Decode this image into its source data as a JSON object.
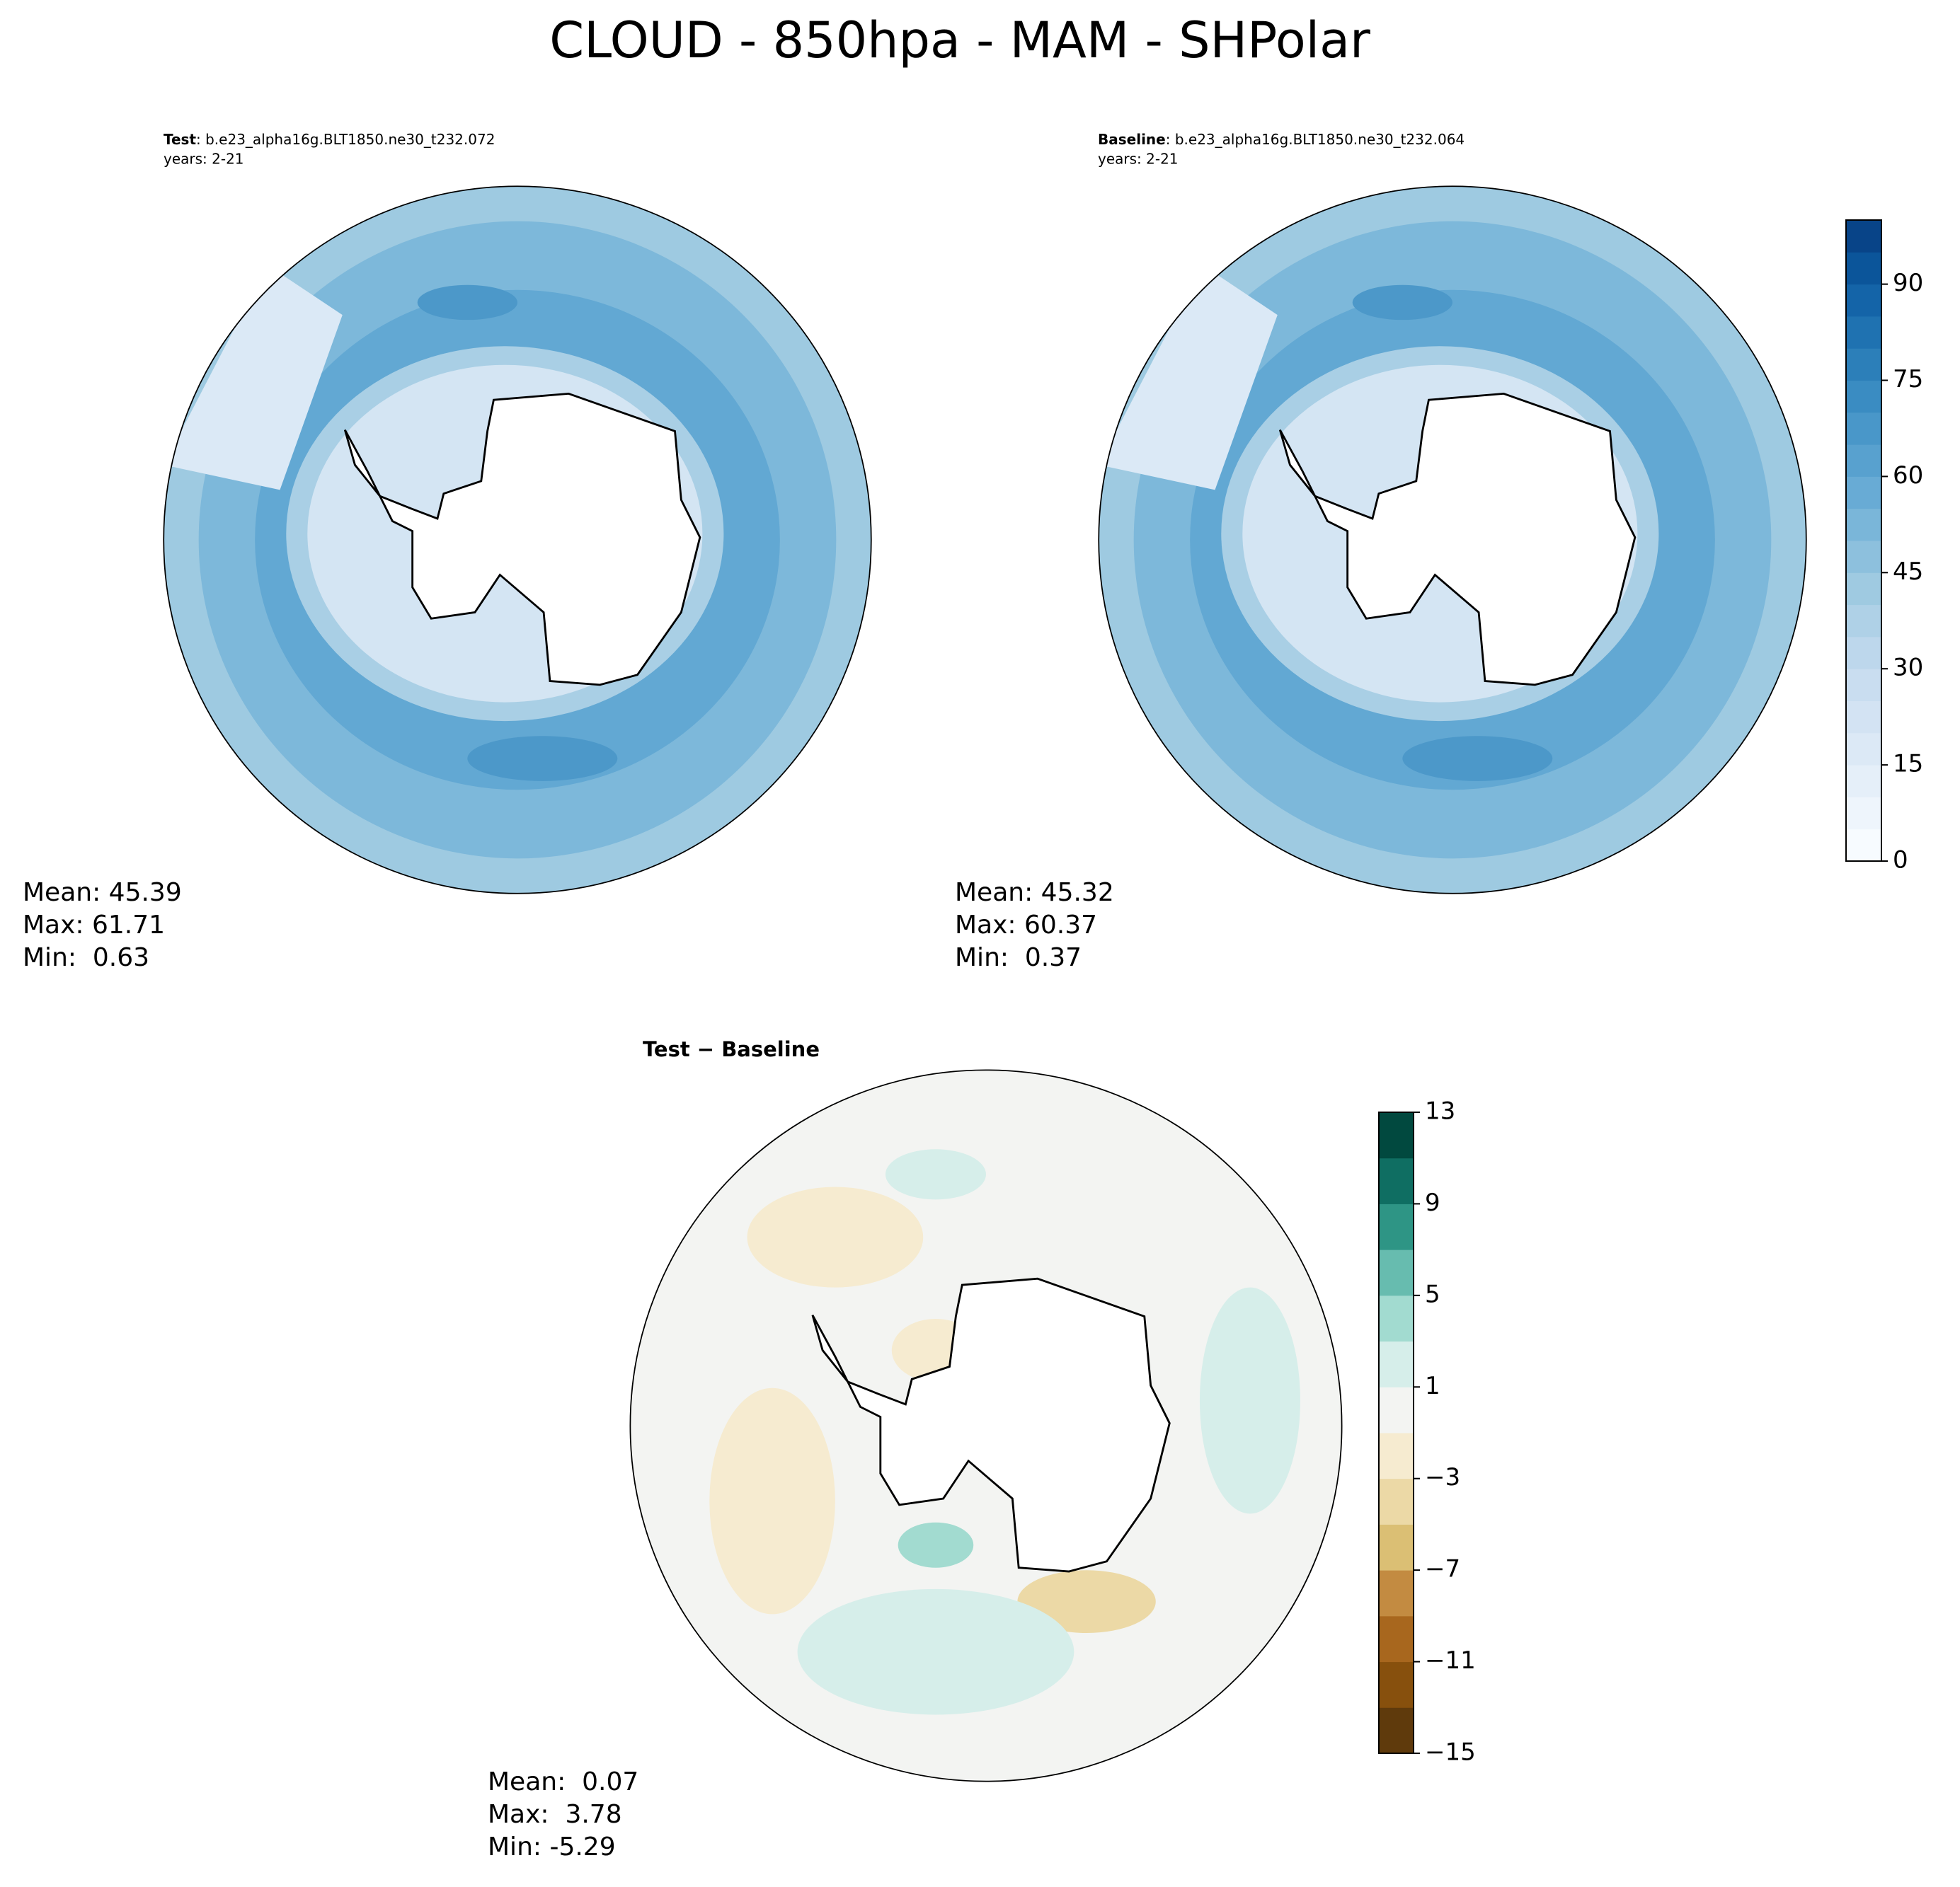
{
  "title": "CLOUD - 850hpa - MAM - SHPolar",
  "panels": [
    {
      "label": "Test",
      "case": ": b.e23_alpha16g.BLT1850.ne30_t232.072",
      "years": "years: 2-21",
      "stats": [
        "Mean: 45.39",
        "Max: 61.71",
        "Min:  0.63"
      ]
    },
    {
      "label": "Baseline",
      "case": ": b.e23_alpha16g.BLT1850.ne30_t232.064",
      "years": "years: 2-21",
      "stats": [
        "Mean: 45.32",
        "Max: 60.37",
        "Min:  0.37"
      ]
    },
    {
      "label": "Test − Baseline",
      "stats": [
        "Mean:  0.07",
        "Max:  3.78",
        "Min: -5.29"
      ]
    }
  ],
  "colorbars": [
    {
      "lim": [
        0,
        100
      ],
      "ticks": [
        0,
        15,
        30,
        45,
        60,
        75,
        90
      ],
      "colors": [
        "#f7fbff",
        "#eef5fc",
        "#e5eff9",
        "#dce9f6",
        "#d3e3f3",
        "#c9ddf0",
        "#bdd7ec",
        "#afd1e7",
        "#9fcae1",
        "#8dc0dd",
        "#7ab6d9",
        "#68abd5",
        "#58a1cf",
        "#4997c9",
        "#3a8cc2",
        "#2c7fb9",
        "#1f72b1",
        "#1464a8",
        "#0b559a",
        "#084488"
      ]
    },
    {
      "lim": [
        -15,
        13
      ],
      "ticks": [
        {
          "value": -15,
          "label": "−15"
        },
        {
          "value": -11,
          "label": "−11"
        },
        {
          "value": -7,
          "label": "−7"
        },
        {
          "value": -3,
          "label": "−3"
        },
        1,
        5,
        9,
        13
      ],
      "colors": [
        "#5f3a0c",
        "#87500d",
        "#a8671e",
        "#c38b41",
        "#dbbf74",
        "#ecd9a6",
        "#f6ebd0",
        "#f3f4f2",
        "#d6eeea",
        "#a2dbd0",
        "#67bcaf",
        "#2e9585",
        "#0f6e62",
        "#01493f"
      ]
    }
  ]
}
